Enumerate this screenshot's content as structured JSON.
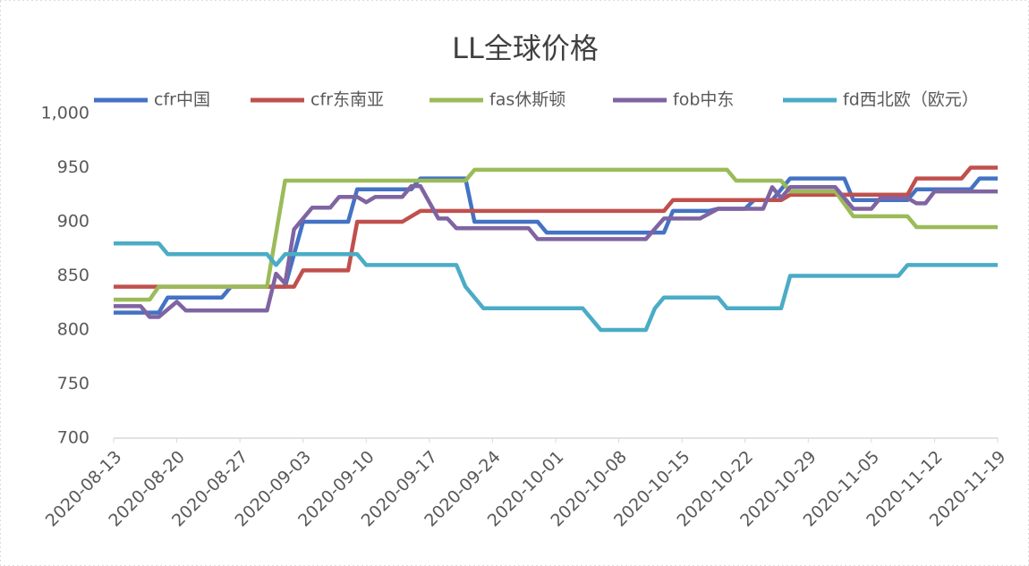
{
  "chart_data": {
    "type": "line",
    "title": "LL全球价格",
    "xlim": [
      "2020-08-13",
      "2020-11-19"
    ],
    "xticks": [
      "2020-08-13",
      "2020-08-20",
      "2020-08-27",
      "2020-09-03",
      "2020-09-10",
      "2020-09-17",
      "2020-09-24",
      "2020-10-01",
      "2020-10-08",
      "2020-10-15",
      "2020-10-22",
      "2020-10-29",
      "2020-11-05",
      "2020-11-12",
      "2020-11-19"
    ],
    "ylim": [
      700,
      1000
    ],
    "yticks": [
      700,
      750,
      800,
      850,
      900,
      950,
      {
        "value": 1000,
        "label": "1,000"
      }
    ],
    "grid": false,
    "legend": "top",
    "series": [
      {
        "name": "cfr中国",
        "color": "#4472c4",
        "x": [
          "2020-08-13",
          "2020-08-18",
          "2020-08-19",
          "2020-08-25",
          "2020-08-26",
          "2020-09-01",
          "2020-09-03",
          "2020-09-08",
          "2020-09-09",
          "2020-09-15",
          "2020-09-16",
          "2020-09-21",
          "2020-09-22",
          "2020-09-29",
          "2020-09-30",
          "2020-10-13",
          "2020-10-14",
          "2020-10-18",
          "2020-10-19",
          "2020-10-22",
          "2020-10-23",
          "2020-10-25",
          "2020-10-27",
          "2020-11-02",
          "2020-11-03",
          "2020-11-09",
          "2020-11-10",
          "2020-11-16",
          "2020-11-17",
          "2020-11-19"
        ],
        "values": [
          816,
          816,
          830,
          830,
          840,
          840,
          900,
          900,
          930,
          930,
          940,
          940,
          900,
          900,
          890,
          890,
          910,
          910,
          912,
          912,
          920,
          920,
          940,
          940,
          920,
          920,
          930,
          930,
          940,
          940
        ]
      },
      {
        "name": "cfr东南亚",
        "color": "#c0504d",
        "x": [
          "2020-08-13",
          "2020-09-02",
          "2020-09-03",
          "2020-09-08",
          "2020-09-09",
          "2020-09-14",
          "2020-09-16",
          "2020-10-13",
          "2020-10-14",
          "2020-10-26",
          "2020-10-27",
          "2020-11-09",
          "2020-11-10",
          "2020-11-15",
          "2020-11-16",
          "2020-11-19"
        ],
        "values": [
          840,
          840,
          855,
          855,
          900,
          900,
          910,
          910,
          920,
          920,
          925,
          925,
          940,
          940,
          950,
          950
        ]
      },
      {
        "name": "fas休斯顿",
        "color": "#9bbb59",
        "x": [
          "2020-08-13",
          "2020-08-17",
          "2020-08-18",
          "2020-08-30",
          "2020-09-01",
          "2020-09-21",
          "2020-09-22",
          "2020-10-20",
          "2020-10-21",
          "2020-10-26",
          "2020-10-27",
          "2020-11-01",
          "2020-11-03",
          "2020-11-09",
          "2020-11-10",
          "2020-11-19"
        ],
        "values": [
          828,
          828,
          840,
          840,
          938,
          938,
          948,
          948,
          938,
          938,
          928,
          928,
          905,
          905,
          895,
          895
        ]
      },
      {
        "name": "fob中东",
        "color": "#8064a2",
        "x": [
          "2020-08-13",
          "2020-08-16",
          "2020-08-17",
          "2020-08-18",
          "2020-08-20",
          "2020-08-21",
          "2020-08-30",
          "2020-08-31",
          "2020-09-01",
          "2020-09-02",
          "2020-09-04",
          "2020-09-06",
          "2020-09-07",
          "2020-09-09",
          "2020-09-10",
          "2020-09-11",
          "2020-09-14",
          "2020-09-15",
          "2020-09-16",
          "2020-09-18",
          "2020-09-19",
          "2020-09-20",
          "2020-09-28",
          "2020-09-29",
          "2020-10-11",
          "2020-10-13",
          "2020-10-17",
          "2020-10-19",
          "2020-10-24",
          "2020-10-25",
          "2020-10-26",
          "2020-10-27",
          "2020-11-01",
          "2020-11-03",
          "2020-11-05",
          "2020-11-06",
          "2020-11-09",
          "2020-11-10",
          "2020-11-11",
          "2020-11-12",
          "2020-11-19"
        ],
        "values": [
          822,
          822,
          812,
          812,
          826,
          818,
          818,
          852,
          843,
          893,
          913,
          913,
          923,
          923,
          918,
          923,
          923,
          933,
          933,
          903,
          903,
          894,
          894,
          884,
          884,
          903,
          903,
          912,
          912,
          932,
          922,
          932,
          932,
          912,
          912,
          922,
          922,
          917,
          917,
          928,
          928
        ]
      },
      {
        "name": "fd西北欧（欧元）",
        "color": "#4bacc6",
        "x": [
          "2020-08-13",
          "2020-08-18",
          "2020-08-19",
          "2020-08-30",
          "2020-08-31",
          "2020-09-01",
          "2020-09-09",
          "2020-09-10",
          "2020-09-20",
          "2020-09-21",
          "2020-09-23",
          "2020-10-04",
          "2020-10-06",
          "2020-10-11",
          "2020-10-12",
          "2020-10-13",
          "2020-10-19",
          "2020-10-20",
          "2020-10-26",
          "2020-10-27",
          "2020-11-08",
          "2020-11-09",
          "2020-11-19"
        ],
        "values": [
          880,
          880,
          870,
          870,
          860,
          870,
          870,
          860,
          860,
          840,
          820,
          820,
          800,
          800,
          820,
          830,
          830,
          820,
          820,
          850,
          850,
          860,
          860
        ]
      }
    ]
  }
}
